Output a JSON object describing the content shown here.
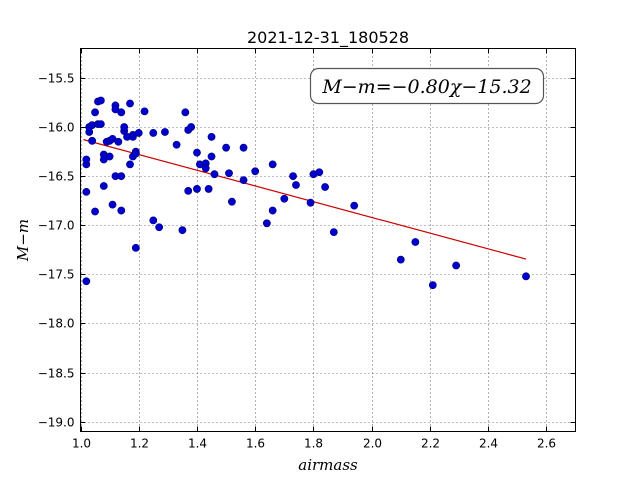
{
  "chart_data": {
    "type": "scatter",
    "title": "2021-12-31_180528",
    "xlabel": "airmass",
    "ylabel": "M−m",
    "xlim": [
      1.0,
      2.7
    ],
    "ylim": [
      -19.1,
      -15.2
    ],
    "y_inverted": true,
    "grid": true,
    "x_ticks": [
      "1.0",
      "1.2",
      "1.4",
      "1.6",
      "1.8",
      "2.0",
      "2.2",
      "2.4",
      "2.6"
    ],
    "y_ticks": [
      "−15.5",
      "−16.0",
      "−16.5",
      "−17.0",
      "−17.5",
      "−18.0",
      "−18.5",
      "−19.0"
    ],
    "annotation": "M−m=−0.80χ−15.32",
    "fit_line": {
      "slope": -0.8,
      "intercept": -15.32,
      "x_range": [
        1.01,
        2.53
      ],
      "color": "#cc0000"
    },
    "point_color": "#0000cc",
    "points": [
      [
        1.02,
        -16.66
      ],
      [
        1.02,
        -16.38
      ],
      [
        1.02,
        -16.33
      ],
      [
        1.02,
        -17.57
      ],
      [
        1.03,
        -16.05
      ],
      [
        1.03,
        -16.0
      ],
      [
        1.04,
        -16.14
      ],
      [
        1.04,
        -15.98
      ],
      [
        1.05,
        -15.85
      ],
      [
        1.05,
        -16.86
      ],
      [
        1.06,
        -15.74
      ],
      [
        1.06,
        -15.97
      ],
      [
        1.07,
        -15.73
      ],
      [
        1.07,
        -15.97
      ],
      [
        1.08,
        -16.28
      ],
      [
        1.08,
        -16.33
      ],
      [
        1.08,
        -16.6
      ],
      [
        1.09,
        -16.15
      ],
      [
        1.1,
        -16.14
      ],
      [
        1.1,
        -16.3
      ],
      [
        1.11,
        -16.12
      ],
      [
        1.11,
        -16.79
      ],
      [
        1.12,
        -15.78
      ],
      [
        1.12,
        -15.82
      ],
      [
        1.12,
        -16.5
      ],
      [
        1.13,
        -16.15
      ],
      [
        1.14,
        -16.5
      ],
      [
        1.14,
        -16.85
      ],
      [
        1.14,
        -15.85
      ],
      [
        1.15,
        -16.04
      ],
      [
        1.15,
        -16.0
      ],
      [
        1.16,
        -16.1
      ],
      [
        1.17,
        -15.76
      ],
      [
        1.17,
        -16.38
      ],
      [
        1.18,
        -16.08
      ],
      [
        1.18,
        -16.1
      ],
      [
        1.18,
        -16.3
      ],
      [
        1.19,
        -16.25
      ],
      [
        1.19,
        -16.27
      ],
      [
        1.19,
        -17.23
      ],
      [
        1.2,
        -16.06
      ],
      [
        1.22,
        -15.84
      ],
      [
        1.25,
        -16.06
      ],
      [
        1.25,
        -16.95
      ],
      [
        1.27,
        -17.02
      ],
      [
        1.29,
        -16.05
      ],
      [
        1.33,
        -16.18
      ],
      [
        1.35,
        -17.05
      ],
      [
        1.36,
        -15.85
      ],
      [
        1.37,
        -16.03
      ],
      [
        1.37,
        -16.65
      ],
      [
        1.38,
        -16.0
      ],
      [
        1.4,
        -16.26
      ],
      [
        1.4,
        -16.63
      ],
      [
        1.41,
        -16.38
      ],
      [
        1.43,
        -16.37
      ],
      [
        1.43,
        -16.42
      ],
      [
        1.44,
        -16.63
      ],
      [
        1.45,
        -16.1
      ],
      [
        1.45,
        -16.3
      ],
      [
        1.46,
        -16.48
      ],
      [
        1.5,
        -16.21
      ],
      [
        1.51,
        -16.47
      ],
      [
        1.52,
        -16.76
      ],
      [
        1.56,
        -16.21
      ],
      [
        1.56,
        -16.54
      ],
      [
        1.6,
        -16.45
      ],
      [
        1.64,
        -16.98
      ],
      [
        1.66,
        -16.38
      ],
      [
        1.66,
        -16.85
      ],
      [
        1.7,
        -16.73
      ],
      [
        1.73,
        -16.5
      ],
      [
        1.74,
        -16.59
      ],
      [
        1.79,
        -16.77
      ],
      [
        1.8,
        -16.48
      ],
      [
        1.82,
        -16.46
      ],
      [
        1.84,
        -16.61
      ],
      [
        1.87,
        -17.07
      ],
      [
        1.94,
        -16.8
      ],
      [
        2.1,
        -17.35
      ],
      [
        2.15,
        -17.17
      ],
      [
        2.21,
        -17.61
      ],
      [
        2.29,
        -17.41
      ],
      [
        2.53,
        -17.52
      ]
    ]
  }
}
